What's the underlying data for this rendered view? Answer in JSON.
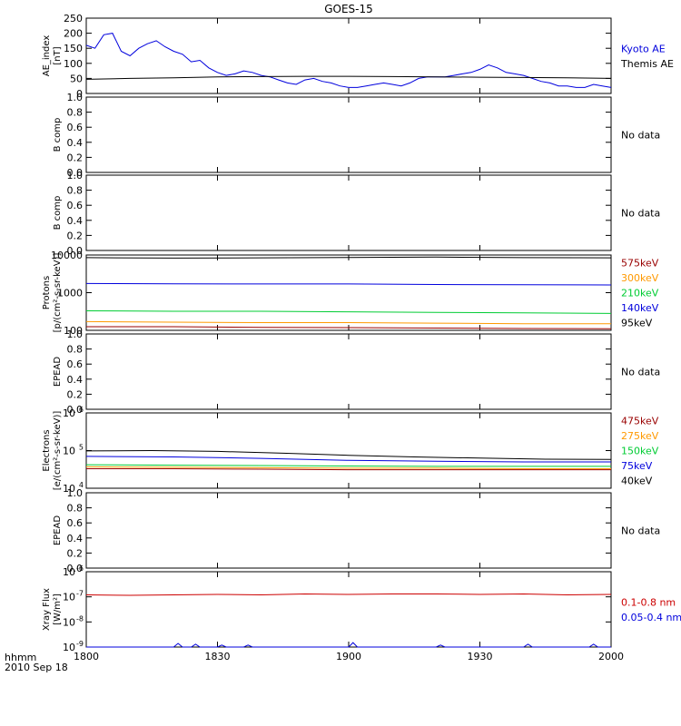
{
  "title": "GOES-15",
  "time_axis": {
    "ticks": [
      "1800",
      "1830",
      "1900",
      "1930",
      "2000"
    ],
    "corner_label": "hhmm",
    "date_label": "2010 Sep 18"
  },
  "colors": {
    "black": "#000000",
    "blue": "#0000dd",
    "red": "#cc0000",
    "orange": "#ff9900",
    "green": "#00cc33",
    "darkred": "#990000",
    "purple": "#660066"
  },
  "chart_data": [
    {
      "type": "line",
      "ylabel": [
        "AE_index",
        "[nT]"
      ],
      "ylim": [
        0,
        250
      ],
      "yticks": [
        0,
        50,
        100,
        150,
        200,
        250
      ],
      "ytick_labels": [
        "0",
        "50",
        "100",
        "150",
        "200",
        "250"
      ],
      "legend": [
        {
          "text": "Kyoto AE",
          "color": "#0000dd"
        },
        {
          "text": "Themis AE",
          "color": "#000000"
        }
      ],
      "series": [
        {
          "name": "Kyoto AE",
          "color": "#0000dd",
          "x": [
            0,
            2,
            4,
            6,
            8,
            10,
            12,
            14,
            16,
            18,
            20,
            22,
            24,
            26,
            28,
            30,
            32,
            34,
            36,
            38,
            40,
            42,
            44,
            46,
            48,
            50,
            52,
            54,
            56,
            58,
            60,
            62,
            64,
            66,
            68,
            70,
            72,
            74,
            76,
            78,
            80,
            82,
            84,
            86,
            88,
            90,
            92,
            94,
            96,
            98,
            100,
            102,
            104,
            106,
            108,
            110,
            112,
            114,
            116,
            118,
            120
          ],
          "y": [
            160,
            150,
            195,
            200,
            140,
            125,
            150,
            165,
            175,
            155,
            140,
            130,
            105,
            110,
            85,
            70,
            60,
            65,
            75,
            70,
            60,
            55,
            45,
            35,
            30,
            45,
            50,
            40,
            35,
            25,
            20,
            20,
            25,
            30,
            35,
            30,
            25,
            35,
            50,
            55,
            55,
            55,
            60,
            65,
            70,
            80,
            95,
            85,
            70,
            65,
            60,
            50,
            40,
            35,
            25,
            25,
            20,
            20,
            30,
            25,
            20
          ]
        },
        {
          "name": "Themis AE",
          "color": "#000000",
          "x": [
            0,
            10,
            20,
            30,
            40,
            50,
            60,
            70,
            80,
            90,
            100,
            110,
            120
          ],
          "y": [
            47,
            50,
            52,
            55,
            56,
            57,
            57,
            56,
            55,
            54,
            53,
            52,
            50
          ]
        }
      ]
    },
    {
      "type": "line",
      "ylabel": [
        "B comp"
      ],
      "ylim": [
        0,
        1
      ],
      "yticks": [
        0,
        0.2,
        0.4,
        0.6,
        0.8,
        1.0
      ],
      "ytick_labels": [
        "0.0",
        "0.2",
        "0.4",
        "0.6",
        "0.8",
        "1.0"
      ],
      "legend": [
        {
          "text": "No data",
          "color": "#000000"
        }
      ],
      "series": []
    },
    {
      "type": "line",
      "ylabel": [
        "B comp"
      ],
      "ylim": [
        0,
        1
      ],
      "yticks": [
        0,
        0.2,
        0.4,
        0.6,
        0.8,
        1.0
      ],
      "ytick_labels": [
        "0.0",
        "0.2",
        "0.4",
        "0.6",
        "0.8",
        "1.0"
      ],
      "legend": [
        {
          "text": "No data",
          "color": "#000000"
        }
      ],
      "series": []
    },
    {
      "type": "line",
      "log": true,
      "ylabel": [
        "Protons",
        "[p/(cm²-s-sr-keV)]"
      ],
      "ylim": [
        100,
        10000
      ],
      "yticks": [
        100,
        1000,
        10000
      ],
      "ytick_labels": [
        "100",
        "1000",
        "10000"
      ],
      "legend": [
        {
          "text": "575keV",
          "color": "#990000"
        },
        {
          "text": "300keV",
          "color": "#ff9900"
        },
        {
          "text": "210keV",
          "color": "#00cc33"
        },
        {
          "text": "140keV",
          "color": "#0000dd"
        },
        {
          "text": "95keV",
          "color": "#000000"
        }
      ],
      "series": [
        {
          "name": "95keV",
          "color": "#000000",
          "x": [
            0,
            20,
            40,
            60,
            80,
            100,
            120
          ],
          "y": [
            8500,
            8300,
            8400,
            8600,
            8800,
            8500,
            8400
          ]
        },
        {
          "name": "140keV",
          "color": "#0000dd",
          "x": [
            0,
            20,
            40,
            60,
            80,
            100,
            120
          ],
          "y": [
            1750,
            1720,
            1700,
            1700,
            1650,
            1620,
            1600
          ]
        },
        {
          "name": "210keV",
          "color": "#00cc33",
          "x": [
            0,
            20,
            40,
            60,
            80,
            100,
            120
          ],
          "y": [
            330,
            320,
            320,
            310,
            300,
            290,
            280
          ]
        },
        {
          "name": "300keV",
          "color": "#ff9900",
          "x": [
            0,
            20,
            40,
            60,
            80,
            100,
            120
          ],
          "y": [
            170,
            165,
            160,
            160,
            155,
            150,
            150
          ]
        },
        {
          "name": "575keV",
          "color": "#990000",
          "x": [
            0,
            20,
            40,
            60,
            80,
            100,
            120
          ],
          "y": [
            125,
            125,
            120,
            118,
            115,
            112,
            110
          ]
        }
      ]
    },
    {
      "type": "line",
      "ylabel": [
        "EPEAD"
      ],
      "ylim": [
        0,
        1
      ],
      "yticks": [
        0,
        0.2,
        0.4,
        0.6,
        0.8,
        1.0
      ],
      "ytick_labels": [
        "0.0",
        "0.2",
        "0.4",
        "0.6",
        "0.8",
        "1.0"
      ],
      "legend": [
        {
          "text": "No data",
          "color": "#000000"
        }
      ],
      "series": []
    },
    {
      "type": "line",
      "log": true,
      "ylabel": [
        "Electrons",
        "[e/(cm²-s-sr-keV)]"
      ],
      "ylim": [
        10000,
        1000000
      ],
      "yticks": [
        10000,
        100000,
        1000000
      ],
      "ytick_labels": [
        "10",
        "10",
        "10"
      ],
      "ytick_exp": [
        "4",
        "5",
        "6"
      ],
      "legend": [
        {
          "text": "475keV",
          "color": "#990000"
        },
        {
          "text": "275keV",
          "color": "#ff9900"
        },
        {
          "text": "150keV",
          "color": "#00cc33"
        },
        {
          "text": "75keV",
          "color": "#0000dd"
        },
        {
          "text": "40keV",
          "color": "#000000"
        }
      ],
      "series": [
        {
          "name": "40keV",
          "color": "#000000",
          "x": [
            0,
            15,
            30,
            45,
            60,
            75,
            90,
            105,
            120
          ],
          "y": [
            98000,
            100000,
            95000,
            85000,
            75000,
            68000,
            63000,
            59000,
            58000
          ]
        },
        {
          "name": "75keV",
          "color": "#0000dd",
          "x": [
            0,
            20,
            40,
            60,
            80,
            100,
            120
          ],
          "y": [
            70000,
            68000,
            62000,
            55000,
            52000,
            50000,
            50000
          ]
        },
        {
          "name": "150keV",
          "color": "#00cc33",
          "x": [
            0,
            20,
            40,
            60,
            80,
            100,
            120
          ],
          "y": [
            42000,
            41000,
            40000,
            39000,
            38000,
            38000,
            38000
          ]
        },
        {
          "name": "275keV",
          "color": "#ff9900",
          "x": [
            0,
            20,
            40,
            60,
            80,
            100,
            120
          ],
          "y": [
            37000,
            36000,
            35000,
            34000,
            34000,
            33000,
            33000
          ]
        },
        {
          "name": "475keV",
          "color": "#990000",
          "x": [
            0,
            20,
            40,
            60,
            80,
            100,
            120
          ],
          "y": [
            33000,
            33000,
            32000,
            31000,
            31000,
            31000,
            31000
          ]
        }
      ]
    },
    {
      "type": "line",
      "ylabel": [
        "EPEAD"
      ],
      "ylim": [
        0,
        1
      ],
      "yticks": [
        0,
        0.2,
        0.4,
        0.6,
        0.8,
        1.0
      ],
      "ytick_labels": [
        "0.0",
        "0.2",
        "0.4",
        "0.6",
        "0.8",
        "1.0"
      ],
      "legend": [
        {
          "text": "No data",
          "color": "#000000"
        }
      ],
      "series": []
    },
    {
      "type": "line",
      "log": true,
      "ylabel": [
        "Xray Flux",
        "[W/m²]"
      ],
      "ylim": [
        1e-09,
        1e-06
      ],
      "yticks": [
        1e-09,
        1e-08,
        1e-07,
        1e-06
      ],
      "ytick_labels": [
        "10",
        "10",
        "10",
        "10"
      ],
      "ytick_exp": [
        "-9",
        "-8",
        "-7",
        "-6"
      ],
      "legend": [
        {
          "text": "0.1-0.8 nm",
          "color": "#cc0000"
        },
        {
          "text": "0.05-0.4 nm",
          "color": "#0000dd"
        }
      ],
      "series": [
        {
          "name": "0.1-0.8 nm",
          "color": "#cc0000",
          "x": [
            0,
            10,
            20,
            30,
            40,
            50,
            60,
            70,
            80,
            90,
            100,
            110,
            120
          ],
          "y": [
            1.2e-07,
            1.15e-07,
            1.2e-07,
            1.25e-07,
            1.2e-07,
            1.3e-07,
            1.25e-07,
            1.3e-07,
            1.3e-07,
            1.25e-07,
            1.3e-07,
            1.2e-07,
            1.25e-07
          ]
        },
        {
          "name": "0.05-0.4 nm",
          "color": "#0000dd",
          "x": [
            0,
            20,
            21,
            22,
            24,
            25,
            26,
            30,
            31,
            32,
            36,
            37,
            38,
            60,
            61,
            62,
            80,
            81,
            82,
            100,
            101,
            102,
            115,
            116,
            117,
            120
          ],
          "y": [
            1e-09,
            1e-09,
            1.4e-09,
            1e-09,
            1e-09,
            1.3e-09,
            1e-09,
            1e-09,
            1.2e-09,
            1e-09,
            1e-09,
            1.2e-09,
            1e-09,
            1e-09,
            1.5e-09,
            1e-09,
            1e-09,
            1.2e-09,
            1e-09,
            1e-09,
            1.3e-09,
            1e-09,
            1e-09,
            1.3e-09,
            1e-09,
            1e-09
          ]
        }
      ]
    }
  ]
}
